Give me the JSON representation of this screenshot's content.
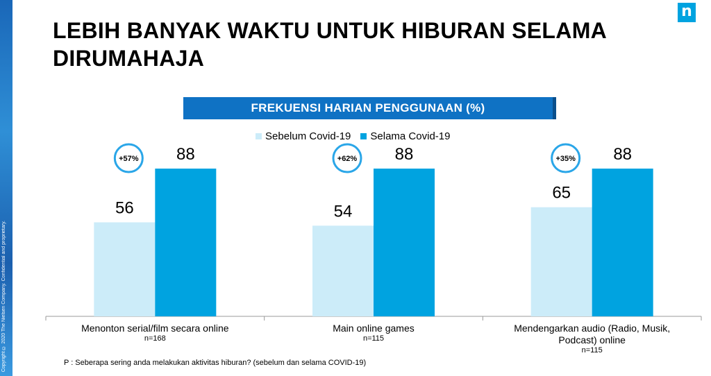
{
  "brand": {
    "logo_text": "n",
    "copyright": "Copyright © 2020 The Nielsen Company. Confidential and proprietary."
  },
  "title": "LEBIH BANYAK WAKTU UNTUK HIBURAN SELAMA DIRUMAHAJA",
  "chart_title": "FREKUENSI HARIAN PENGGUNAAN (%)",
  "footnote": "P : Seberapa sering anda melakukan aktivitas hiburan? (sebelum dan selama COVID-19)",
  "colors": {
    "before": "#ccecf9",
    "during": "#00a3e0",
    "banner": "#0f72c4",
    "badge_ring": "#2aa6e8"
  },
  "chart_data": {
    "type": "bar",
    "title": "FREKUENSI HARIAN PENGGUNAAN (%)",
    "xlabel": "",
    "ylabel": "",
    "ylim": [
      0,
      100
    ],
    "grid": false,
    "legend_position": "top",
    "categories": [
      [
        "Menonton serial/film secara online"
      ],
      [
        "Main online games"
      ],
      [
        "Mendengarkan audio (Radio, Musik,",
        "Podcast) online"
      ]
    ],
    "sample_sizes": [
      "n=168",
      "n=115",
      "n=115"
    ],
    "series": [
      {
        "name": "Sebelum Covid-19",
        "values": [
          56,
          54,
          65
        ]
      },
      {
        "name": "Selama Covid-19",
        "values": [
          88,
          88,
          88
        ]
      }
    ],
    "annotations": [
      "+57%",
      "+62%",
      "+35%"
    ]
  }
}
